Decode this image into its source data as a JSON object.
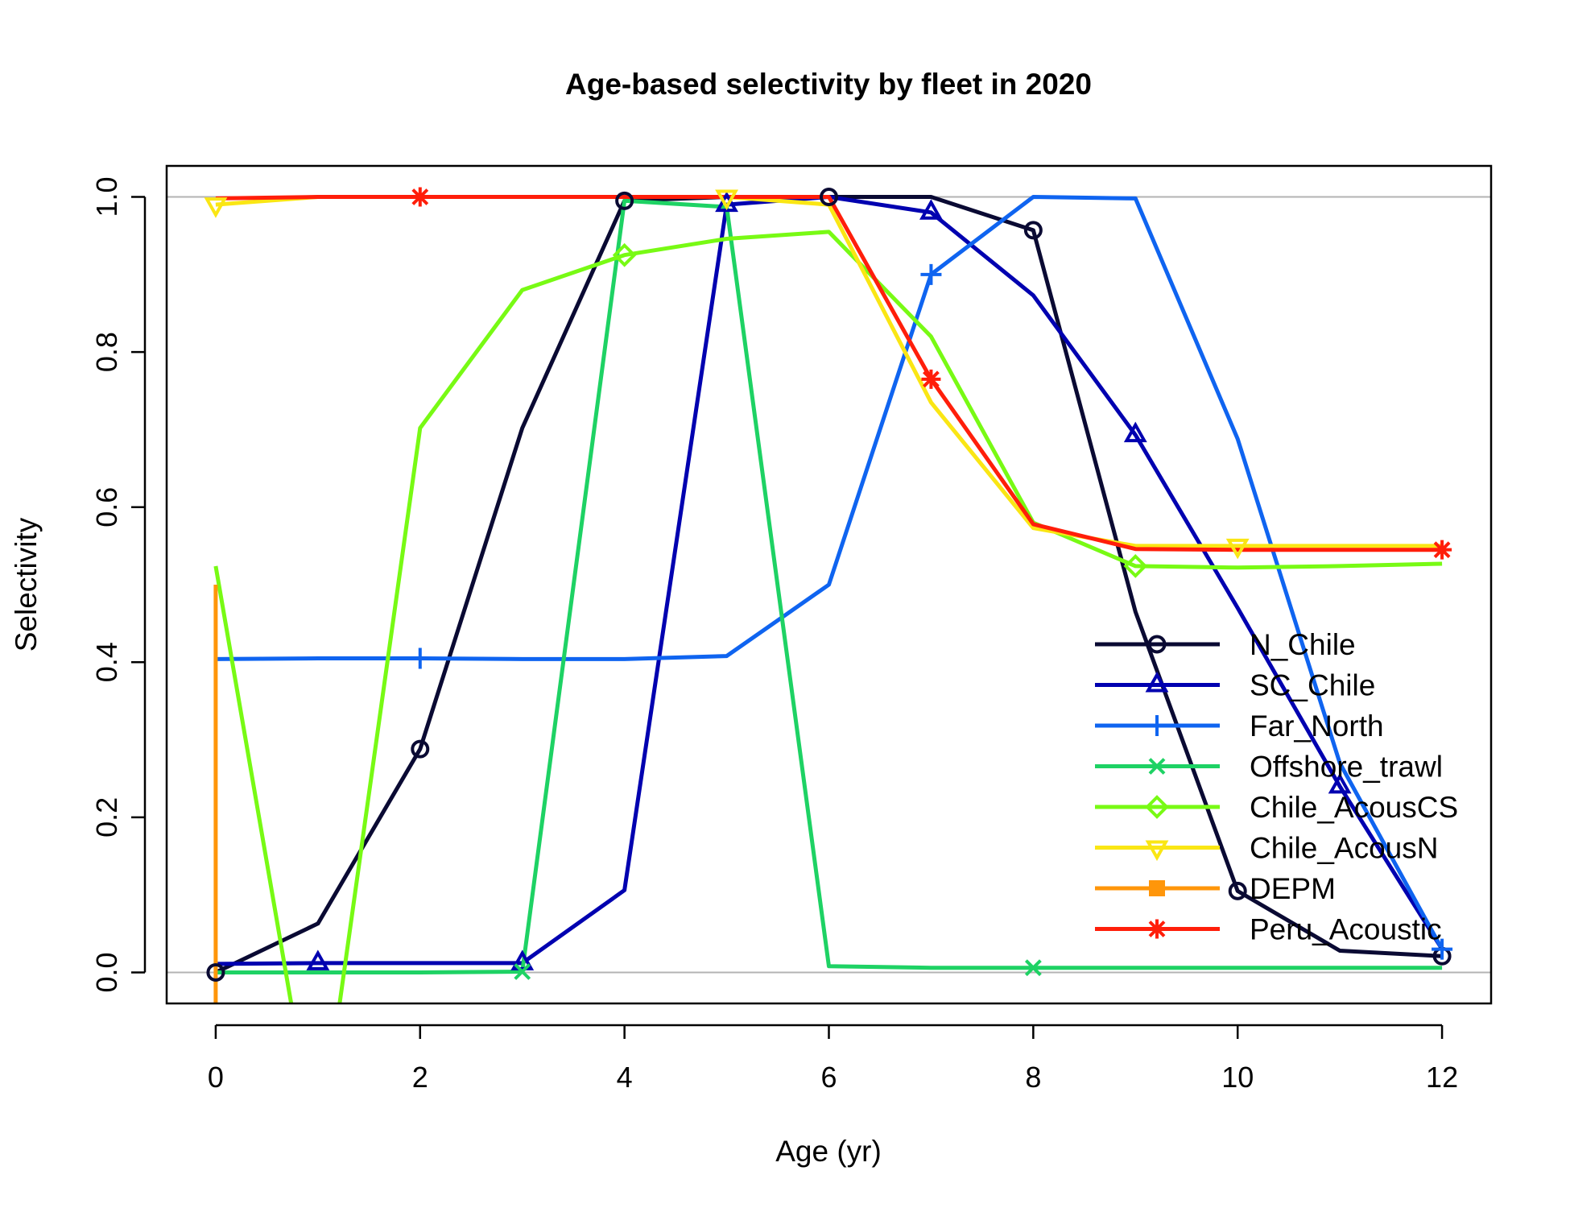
{
  "chart_data": {
    "type": "line",
    "title": "Age-based selectivity by fleet in 2020",
    "xlabel": "Age (yr)",
    "ylabel": "Selectivity",
    "xlim": [
      -0.48,
      12.48
    ],
    "ylim": [
      -0.04,
      1.04
    ],
    "xticks": [
      0,
      2,
      4,
      6,
      8,
      10,
      12
    ],
    "xtick_labels": [
      "0",
      "2",
      "4",
      "6",
      "8",
      "10",
      "12"
    ],
    "yticks": [
      0.0,
      0.2,
      0.4,
      0.6,
      0.8,
      1.0
    ],
    "ytick_labels": [
      "0.0",
      "0.2",
      "0.4",
      "0.6",
      "0.8",
      "1.0"
    ],
    "reference_lines": [
      0,
      1
    ],
    "reference_line_color": "#b3b3b3",
    "legend_position": "bottom-right",
    "x": [
      0,
      1,
      2,
      3,
      4,
      5,
      6,
      7,
      8,
      9,
      10,
      11,
      12
    ],
    "series": [
      {
        "name": "N_Chile",
        "color": "#0a0a33",
        "marker": "circle",
        "marker_every": 2,
        "marker_offset": 0,
        "values": [
          0.0,
          0.063,
          0.288,
          0.702,
          0.995,
          1.0,
          1.0,
          1.0,
          0.957,
          0.465,
          0.105,
          0.028,
          0.021
        ]
      },
      {
        "name": "SC_Chile",
        "color": "#0000b0",
        "marker": "triangle-up",
        "marker_every": 2,
        "marker_offset": 1,
        "values": [
          0.011,
          0.012,
          0.012,
          0.012,
          0.106,
          0.99,
          1.0,
          0.98,
          0.873,
          0.693,
          0.47,
          0.24,
          0.03
        ]
      },
      {
        "name": "Far_North",
        "color": "#0f64f0",
        "marker": "plus",
        "marker_every": 5,
        "marker_offset": 2,
        "values": [
          0.404,
          0.405,
          0.405,
          0.404,
          0.404,
          0.408,
          0.5,
          0.9,
          1.0,
          0.998,
          0.688,
          0.27,
          0.03
        ]
      },
      {
        "name": "Offshore_trawl",
        "color": "#1ed264",
        "marker": "x",
        "marker_every": 5,
        "marker_offset": 3,
        "values": [
          0.0,
          0.0,
          0.0,
          0.001,
          0.995,
          0.987,
          0.008,
          0.006,
          0.006,
          0.006,
          0.006,
          0.006,
          0.006
        ]
      },
      {
        "name": "Chile_AcousCS",
        "color": "#78fa14",
        "marker": "diamond",
        "marker_every": 5,
        "marker_offset": 4,
        "values": [
          0.524,
          -0.24,
          0.702,
          0.88,
          0.925,
          0.946,
          0.955,
          0.82,
          0.58,
          0.524,
          0.522,
          0.524,
          0.527
        ]
      },
      {
        "name": "Chile_AcousN",
        "color": "#fae614",
        "marker": "triangle-down",
        "marker_every": 5,
        "marker_offset": 0,
        "values": [
          0.99,
          1.0,
          1.0,
          1.0,
          1.0,
          1.0,
          0.99,
          0.735,
          0.573,
          0.55,
          0.55,
          0.55,
          0.55
        ]
      },
      {
        "name": "DEPM",
        "color": "#ff960a",
        "marker": "square",
        "marker_every": 0,
        "marker_offset": 0,
        "x": [
          0,
          0
        ],
        "values": [
          0.5,
          -0.04
        ]
      },
      {
        "name": "Peru_Acoustic",
        "color": "#ff1e0a",
        "marker": "asterisk",
        "marker_every": 5,
        "marker_offset": 2,
        "values": [
          0.998,
          1.0,
          1.0,
          1.0,
          1.0,
          1.0,
          1.0,
          0.765,
          0.578,
          0.546,
          0.545,
          0.545,
          0.545
        ]
      }
    ]
  }
}
